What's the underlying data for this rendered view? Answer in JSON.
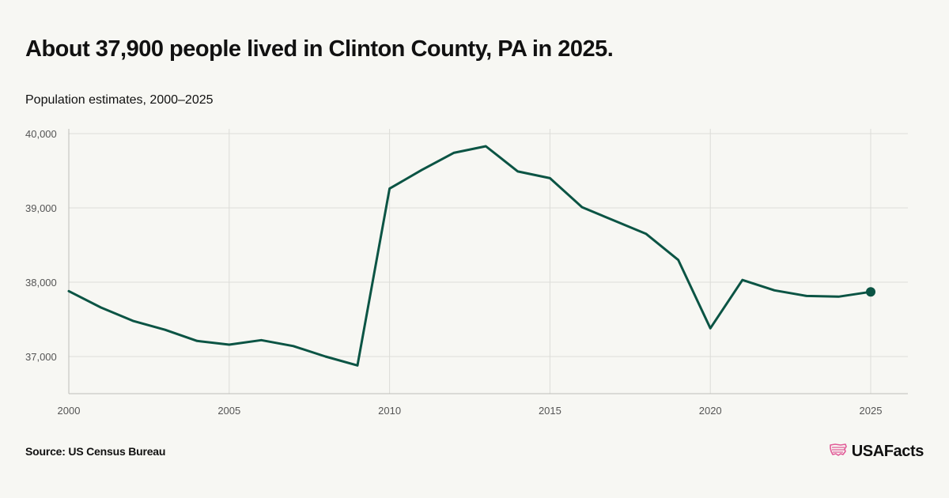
{
  "header": {
    "title": "About 37,900 people lived in Clinton County, PA in 2025.",
    "subtitle": "Population estimates, 2000–2025"
  },
  "footer": {
    "source": "Source: US Census Bureau",
    "brand": "USAFacts",
    "brand_icon": "us-map-flag-icon"
  },
  "colors": {
    "line": "#0b5444",
    "background": "#f7f7f3",
    "brand_icon": "#e15b97"
  },
  "chart_data": {
    "type": "line",
    "title": "About 37,900 people lived in Clinton County, PA in 2025.",
    "subtitle": "Population estimates, 2000–2025",
    "xlabel": "",
    "ylabel": "",
    "x": [
      2000,
      2001,
      2002,
      2003,
      2004,
      2005,
      2006,
      2007,
      2008,
      2009,
      2010,
      2011,
      2012,
      2013,
      2014,
      2015,
      2016,
      2017,
      2018,
      2019,
      2020,
      2021,
      2022,
      2023,
      2024,
      2025
    ],
    "series": [
      {
        "values": [
          37880,
          37660,
          37480,
          37360,
          37210,
          37160,
          37220,
          37140,
          37000,
          36880,
          39260,
          39510,
          39740,
          39830,
          39490,
          39400,
          39010,
          38830,
          38650,
          38300,
          37380,
          38030,
          37890,
          37815,
          37805,
          37870
        ]
      }
    ],
    "xlim": [
      2000,
      2025
    ],
    "ylim": [
      36500,
      40000
    ],
    "x_ticks": [
      2000,
      2005,
      2010,
      2015,
      2020,
      2025
    ],
    "x_tick_labels": [
      "2000",
      "2005",
      "2010",
      "2015",
      "2020",
      "2025"
    ],
    "y_ticks": [
      37000,
      38000,
      39000,
      40000
    ],
    "y_tick_labels": [
      "37,000",
      "38,000",
      "39,000",
      "40,000"
    ],
    "grid": true,
    "highlight_last_point": true
  }
}
